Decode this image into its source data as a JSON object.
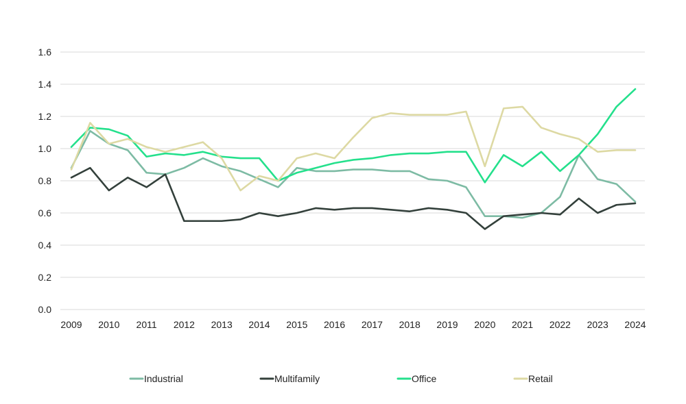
{
  "chart_data": {
    "type": "line",
    "title": "",
    "xlabel": "",
    "ylabel": "",
    "ylim": [
      0,
      1.6
    ],
    "yticks": [
      "0.0",
      "0.2",
      "0.4",
      "0.6",
      "0.8",
      "1.0",
      "1.2",
      "1.4",
      "1.6"
    ],
    "xlim": [
      2009,
      2024
    ],
    "xticks": [
      "2009",
      "2010",
      "2011",
      "2012",
      "2013",
      "2014",
      "2015",
      "2016",
      "2017",
      "2018",
      "2019",
      "2020",
      "2021",
      "2022",
      "2023",
      "2024"
    ],
    "x": [
      2009,
      2009.5,
      2010,
      2010.5,
      2011,
      2011.5,
      2012,
      2012.5,
      2013,
      2013.5,
      2014,
      2014.5,
      2015,
      2015.5,
      2016,
      2016.5,
      2017,
      2017.5,
      2018,
      2018.5,
      2019,
      2019.5,
      2020,
      2020.5,
      2021,
      2021.5,
      2022,
      2022.5,
      2023,
      2023.5,
      2024
    ],
    "grid": true,
    "legend_position": "bottom",
    "series": [
      {
        "name": "Industrial",
        "color": "#7dbba4",
        "values": [
          0.88,
          1.11,
          1.03,
          0.99,
          0.85,
          0.84,
          0.88,
          0.94,
          0.89,
          0.86,
          0.81,
          0.76,
          0.88,
          0.86,
          0.86,
          0.87,
          0.87,
          0.86,
          0.86,
          0.81,
          0.8,
          0.76,
          0.58,
          0.58,
          0.57,
          0.6,
          0.7,
          0.96,
          0.81,
          0.78,
          0.67
        ]
      },
      {
        "name": "Multifamily",
        "color": "#33403b",
        "values": [
          0.82,
          0.88,
          0.74,
          0.82,
          0.76,
          0.84,
          0.55,
          0.55,
          0.55,
          0.56,
          0.6,
          0.58,
          0.6,
          0.63,
          0.62,
          0.63,
          0.63,
          0.62,
          0.61,
          0.63,
          0.62,
          0.6,
          0.5,
          0.58,
          0.59,
          0.6,
          0.59,
          0.69,
          0.6,
          0.65,
          0.66
        ]
      },
      {
        "name": "Office",
        "color": "#24e08c",
        "values": [
          1.01,
          1.13,
          1.12,
          1.08,
          0.95,
          0.97,
          0.96,
          0.98,
          0.95,
          0.94,
          0.94,
          0.8,
          0.85,
          0.88,
          0.91,
          0.93,
          0.94,
          0.96,
          0.97,
          0.97,
          0.98,
          0.98,
          0.79,
          0.96,
          0.89,
          0.98,
          0.86,
          0.96,
          1.09,
          1.26,
          1.37
        ]
      },
      {
        "name": "Retail",
        "color": "#ddd9a3",
        "values": [
          0.87,
          1.16,
          1.03,
          1.06,
          1.01,
          0.98,
          1.01,
          1.04,
          0.94,
          0.74,
          0.83,
          0.8,
          0.94,
          0.97,
          0.94,
          1.07,
          1.19,
          1.22,
          1.21,
          1.21,
          1.21,
          1.23,
          0.89,
          1.25,
          1.26,
          1.13,
          1.09,
          1.06,
          0.98,
          0.99,
          0.99
        ]
      }
    ]
  }
}
